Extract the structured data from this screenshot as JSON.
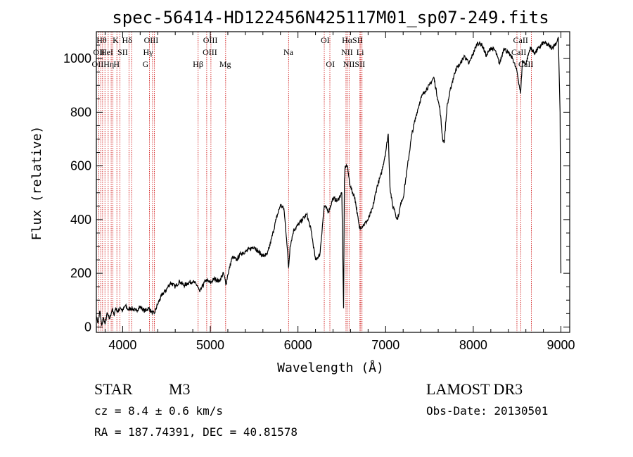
{
  "chart_data": {
    "type": "line",
    "title": "spec-56414-HD122456N425117M01_sp07-249.fits",
    "xlabel": "Wavelength (Å)",
    "ylabel": "Flux (relative)",
    "xlim": [
      3700,
      9100
    ],
    "ylim": [
      -20,
      1100
    ],
    "xticks": [
      4000,
      5000,
      6000,
      7000,
      8000,
      9000
    ],
    "yticks": [
      0,
      200,
      400,
      600,
      800,
      1000
    ],
    "series": [
      {
        "name": "spectrum",
        "x": [
          3700,
          3720,
          3740,
          3760,
          3780,
          3800,
          3820,
          3850,
          3880,
          3900,
          3920,
          3950,
          3970,
          4000,
          4030,
          4060,
          4100,
          4150,
          4200,
          4250,
          4300,
          4330,
          4360,
          4400,
          4450,
          4500,
          4550,
          4600,
          4650,
          4700,
          4750,
          4800,
          4850,
          4880,
          4900,
          4950,
          5000,
          5050,
          5100,
          5150,
          5180,
          5200,
          5250,
          5300,
          5350,
          5400,
          5450,
          5500,
          5550,
          5600,
          5650,
          5700,
          5750,
          5800,
          5840,
          5870,
          5893,
          5910,
          5950,
          6000,
          6050,
          6100,
          6150,
          6200,
          6250,
          6280,
          6300,
          6350,
          6400,
          6450,
          6500,
          6520,
          6530,
          6540,
          6563,
          6580,
          6600,
          6650,
          6700,
          6750,
          6800,
          6850,
          6900,
          6950,
          7000,
          7030,
          7050,
          7080,
          7100,
          7130,
          7150,
          7180,
          7200,
          7250,
          7300,
          7350,
          7400,
          7450,
          7500,
          7550,
          7600,
          7620,
          7650,
          7670,
          7700,
          7750,
          7800,
          7850,
          7900,
          7950,
          8000,
          8050,
          8100,
          8150,
          8200,
          8250,
          8300,
          8350,
          8400,
          8450,
          8500,
          8540,
          8560,
          8600,
          8650,
          8700,
          8750,
          8800,
          8850,
          8900,
          8950,
          8970,
          8990,
          9000
        ],
        "values": [
          40,
          15,
          60,
          5,
          35,
          10,
          50,
          30,
          65,
          45,
          70,
          55,
          75,
          60,
          80,
          65,
          70,
          60,
          75,
          60,
          70,
          55,
          50,
          85,
          120,
          140,
          165,
          150,
          170,
          155,
          165,
          170,
          155,
          130,
          145,
          175,
          165,
          180,
          170,
          200,
          160,
          195,
          260,
          250,
          275,
          280,
          290,
          300,
          280,
          265,
          270,
          330,
          400,
          455,
          440,
          330,
          220,
          300,
          360,
          380,
          400,
          420,
          360,
          250,
          270,
          380,
          450,
          430,
          480,
          470,
          500,
          70,
          550,
          600,
          600,
          560,
          520,
          480,
          370,
          380,
          400,
          440,
          520,
          570,
          650,
          720,
          520,
          450,
          440,
          400,
          420,
          470,
          480,
          600,
          720,
          790,
          850,
          880,
          900,
          930,
          840,
          810,
          700,
          690,
          820,
          900,
          960,
          980,
          1010,
          980,
          1020,
          1060,
          1050,
          1010,
          1040,
          1030,
          980,
          1040,
          1020,
          1000,
          950,
          870,
          990,
          980,
          1040,
          1020,
          1040,
          1060,
          1050,
          1040,
          1060,
          1080,
          800,
          200
        ]
      }
    ],
    "lines": [
      {
        "wl": 3727,
        "labels": [
          "OII",
          "OII"
        ]
      },
      {
        "wl": 3750,
        "labels": [
          "",
          "OII"
        ]
      },
      {
        "wl": 3771,
        "labels": [
          "",
          "Hθ"
        ]
      },
      {
        "wl": 3798,
        "labels": [
          "Hθ"
        ]
      },
      {
        "wl": 3835,
        "labels": [
          "Hη"
        ]
      },
      {
        "wl": 3869,
        "labels": [
          "",
          "NeIII"
        ]
      },
      {
        "wl": 3889,
        "labels": [
          "HeI"
        ]
      },
      {
        "wl": 3934,
        "labels": [
          "K",
          "",
          "Hε"
        ]
      },
      {
        "wl": 3969,
        "labels": [
          "H"
        ]
      },
      {
        "wl": 4072,
        "labels": [
          "SII"
        ]
      },
      {
        "wl": 4102,
        "labels": [
          "Hδ"
        ]
      },
      {
        "wl": 4305,
        "labels": [
          "G"
        ]
      },
      {
        "wl": 4341,
        "labels": [
          "Hγ"
        ]
      },
      {
        "wl": 4363,
        "labels": [
          "OIII"
        ]
      },
      {
        "wl": 4861,
        "labels": [
          "Hβ"
        ]
      },
      {
        "wl": 4959,
        "labels": [
          "OIII"
        ]
      },
      {
        "wl": 5007,
        "labels": [
          "OIII"
        ]
      },
      {
        "wl": 5175,
        "labels": [
          "Mg"
        ]
      },
      {
        "wl": 5893,
        "labels": [
          "Na"
        ]
      },
      {
        "wl": 6300,
        "labels": [
          "OI"
        ]
      },
      {
        "wl": 6364,
        "labels": [
          "OI"
        ]
      },
      {
        "wl": 6548,
        "labels": [
          "NII"
        ]
      },
      {
        "wl": 6563,
        "labels": [
          "Hα"
        ]
      },
      {
        "wl": 6583,
        "labels": [
          "NII"
        ]
      },
      {
        "wl": 6707,
        "labels": [
          "Li"
        ]
      },
      {
        "wl": 6716,
        "labels": [
          "SII"
        ]
      },
      {
        "wl": 6731,
        "labels": [
          "SII"
        ]
      },
      {
        "wl": 8498,
        "labels": [
          "CaII"
        ]
      },
      {
        "wl": 8542,
        "labels": [
          "CaII"
        ]
      },
      {
        "wl": 8662,
        "labels": [
          "CaII"
        ]
      }
    ],
    "line_labels": [
      {
        "text": "Hθ",
        "wl": 3760,
        "row": 0
      },
      {
        "text": "K",
        "wl": 3920,
        "row": 0
      },
      {
        "text": "Hδ",
        "wl": 4050,
        "row": 0
      },
      {
        "text": "OIII",
        "wl": 4325,
        "row": 0
      },
      {
        "text": "OIII",
        "wl": 5000,
        "row": 0
      },
      {
        "text": "OI",
        "wl": 6310,
        "row": 0
      },
      {
        "text": "HαSII",
        "wl": 6620,
        "row": 0
      },
      {
        "text": "CaII",
        "wl": 8540,
        "row": 0
      },
      {
        "text": "OII",
        "wl": 3730,
        "row": 1
      },
      {
        "text": "HeI",
        "wl": 3820,
        "row": 1
      },
      {
        "text": "SII",
        "wl": 4000,
        "row": 1
      },
      {
        "text": "Hγ",
        "wl": 4290,
        "row": 1
      },
      {
        "text": "OIII",
        "wl": 4995,
        "row": 1
      },
      {
        "text": "Na",
        "wl": 5890,
        "row": 1
      },
      {
        "text": "NII",
        "wl": 6560,
        "row": 1
      },
      {
        "text": "Li",
        "wl": 6710,
        "row": 1
      },
      {
        "text": "CaII",
        "wl": 8520,
        "row": 1
      },
      {
        "text": "OIIHη",
        "wl": 3775,
        "row": 2
      },
      {
        "text": "H",
        "wl": 3930,
        "row": 2
      },
      {
        "text": "G",
        "wl": 4260,
        "row": 2
      },
      {
        "text": "Hβ",
        "wl": 4860,
        "row": 2
      },
      {
        "text": "Mg",
        "wl": 5170,
        "row": 2
      },
      {
        "text": "OI",
        "wl": 6370,
        "row": 2
      },
      {
        "text": "NIISII",
        "wl": 6640,
        "row": 2
      },
      {
        "text": "CaII",
        "wl": 8600,
        "row": 2
      }
    ]
  },
  "info": {
    "object_class": "STAR",
    "subclass": "M3",
    "survey": "LAMOST DR3",
    "cz": "cz = 8.4 ± 0.6 km/s",
    "obs_date": "Obs-Date: 20130501",
    "coords": "RA = 187.74391, DEC =  40.81578"
  },
  "colors": {
    "spectrum": "#000000",
    "line_marker": "#cc0000",
    "axis": "#000000"
  }
}
